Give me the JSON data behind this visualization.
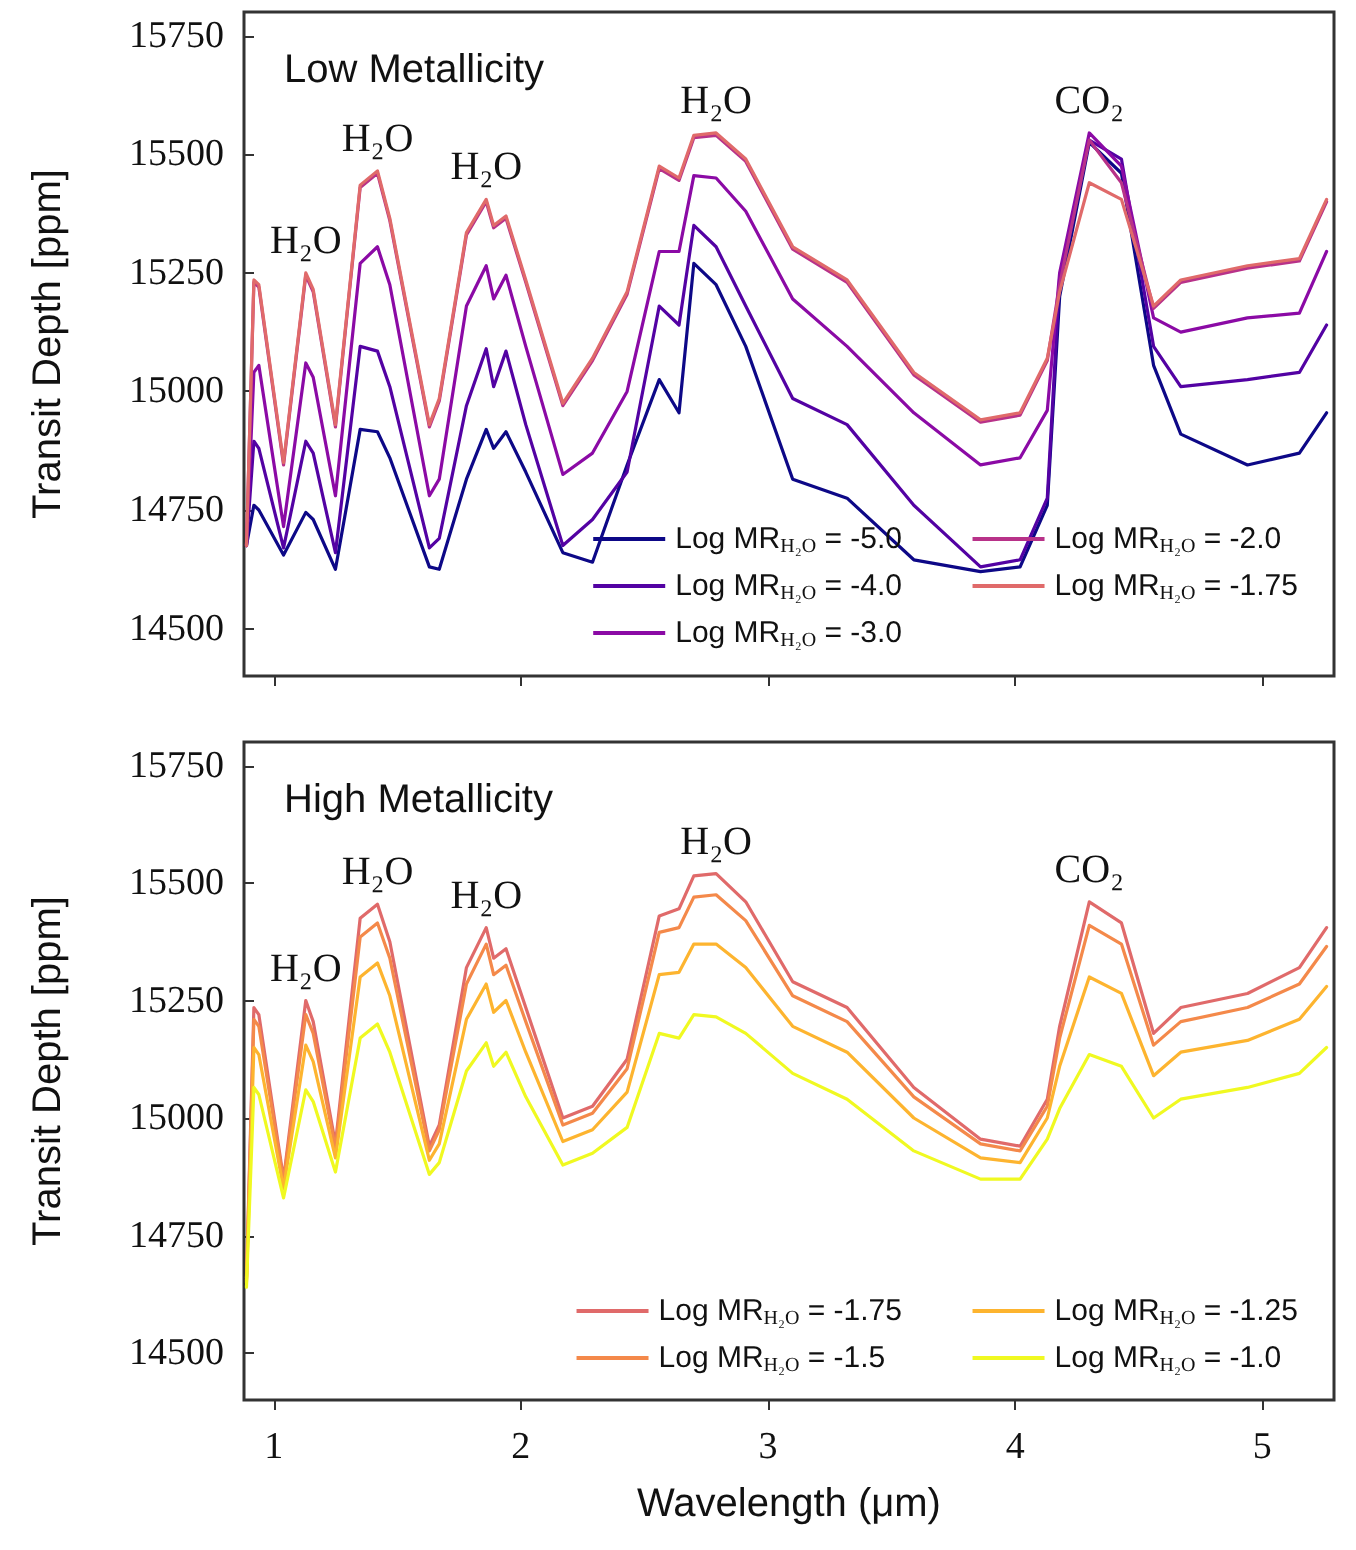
{
  "chart_data": [
    {
      "type": "line",
      "title": "Low Metallicity",
      "ylabel": "Transit Depth [ppm]",
      "xlim": [
        0.88,
        5.29
      ],
      "xticks": [
        1,
        2,
        3,
        4,
        5
      ],
      "ylim": [
        14400,
        15800
      ],
      "yticks": [
        14500,
        14750,
        15000,
        15250,
        15500,
        15750
      ],
      "tick_labels": "y",
      "grid": false,
      "legend": "bottom right",
      "marker": "none",
      "line_style": "solid",
      "x": [
        0.89,
        0.92,
        0.94,
        1.04,
        1.13,
        1.16,
        1.25,
        1.35,
        1.42,
        1.47,
        1.63,
        1.67,
        1.78,
        1.86,
        1.89,
        1.94,
        2.02,
        2.17,
        2.29,
        2.43,
        2.56,
        2.64,
        2.7,
        2.79,
        2.91,
        3.1,
        3.32,
        3.59,
        3.86,
        4.02,
        4.13,
        4.18,
        4.3,
        4.43,
        4.56,
        4.67,
        4.94,
        5.15,
        5.26
      ],
      "annotations": [
        {
          "text": "H₂O",
          "x": 1.13,
          "y": 15250
        },
        {
          "text": "H₂O",
          "x": 1.42,
          "y": 15465
        },
        {
          "text": "H₂O",
          "x": 1.86,
          "y": 15405
        },
        {
          "text": "H₂O",
          "x": 2.79,
          "y": 15545
        },
        {
          "text": "CO₂",
          "x": 4.3,
          "y": 15545
        }
      ],
      "series": [
        {
          "name": "Log MR$_{H₂O}$ = -5.0",
          "color": "#0d0887",
          "values": [
            14675,
            14760,
            14750,
            14655,
            14745,
            14730,
            14625,
            14920,
            14915,
            14860,
            14630,
            14625,
            14815,
            14920,
            14880,
            14915,
            14830,
            14660,
            14640,
            14845,
            15025,
            14955,
            15270,
            15225,
            15095,
            14815,
            14775,
            14645,
            14620,
            14630,
            14760,
            15200,
            15525,
            15460,
            15055,
            14910,
            14845,
            14870,
            14955
          ]
        },
        {
          "name": "Log MR$_{H₂O}$ = -4.0",
          "color": "#5302a3",
          "values": [
            14675,
            14895,
            14880,
            14670,
            14895,
            14870,
            14660,
            15095,
            15085,
            15010,
            14670,
            14690,
            14970,
            15090,
            15010,
            15085,
            14930,
            14675,
            14730,
            14830,
            15180,
            15140,
            15350,
            15305,
            15180,
            14985,
            14930,
            14760,
            14630,
            14645,
            14775,
            15240,
            15530,
            15490,
            15095,
            15010,
            15025,
            15040,
            15140
          ]
        },
        {
          "name": "Log MR$_{H₂O}$ = -3.0",
          "color": "#8b0aa5",
          "values": [
            14675,
            15040,
            15055,
            14715,
            15060,
            15030,
            14780,
            15270,
            15305,
            15225,
            14780,
            14815,
            15180,
            15265,
            15195,
            15245,
            15095,
            14825,
            14870,
            15000,
            15295,
            15295,
            15455,
            15450,
            15380,
            15195,
            15095,
            14955,
            14845,
            14860,
            14960,
            15250,
            15545,
            15475,
            15155,
            15125,
            15155,
            15165,
            15295
          ]
        },
        {
          "name": "Log MR$_{H₂O}$ = -2.0",
          "color": "#b83289",
          "values": [
            14675,
            15230,
            15220,
            14845,
            15245,
            15210,
            14925,
            15430,
            15460,
            15360,
            14925,
            14980,
            15330,
            15400,
            15345,
            15365,
            15230,
            14970,
            15065,
            15205,
            15470,
            15445,
            15535,
            15540,
            15485,
            15300,
            15230,
            15035,
            14935,
            14950,
            15065,
            15225,
            15530,
            15440,
            15175,
            15230,
            15260,
            15275,
            15400
          ]
        },
        {
          "name": "Log MR$_{H₂O}$ = -1.75",
          "color": "#e06a6a",
          "values": [
            14675,
            15235,
            15225,
            14850,
            15250,
            15215,
            14930,
            15435,
            15465,
            15365,
            14930,
            14985,
            15335,
            15405,
            15350,
            15370,
            15235,
            14975,
            15070,
            15210,
            15475,
            15450,
            15540,
            15545,
            15490,
            15305,
            15235,
            15040,
            14940,
            14955,
            15070,
            15210,
            15440,
            15405,
            15180,
            15235,
            15265,
            15280,
            15405
          ]
        }
      ]
    },
    {
      "type": "line",
      "title": "High Metallicity",
      "xlabel": "Wavelength (μm)",
      "ylabel": "Transit Depth [ppm]",
      "xlim": [
        0.88,
        5.29
      ],
      "xticks": [
        1,
        2,
        3,
        4,
        5
      ],
      "ylim": [
        14400,
        15800
      ],
      "yticks": [
        14500,
        14750,
        15000,
        15250,
        15500,
        15750
      ],
      "grid": false,
      "legend": "bottom right",
      "marker": "none",
      "line_style": "solid",
      "x": [
        0.89,
        0.92,
        0.94,
        1.04,
        1.13,
        1.16,
        1.25,
        1.35,
        1.42,
        1.47,
        1.63,
        1.67,
        1.78,
        1.86,
        1.89,
        1.94,
        2.02,
        2.17,
        2.29,
        2.43,
        2.56,
        2.64,
        2.7,
        2.79,
        2.91,
        3.1,
        3.32,
        3.59,
        3.86,
        4.02,
        4.13,
        4.18,
        4.3,
        4.43,
        4.56,
        4.67,
        4.94,
        5.15,
        5.26
      ],
      "annotations": [
        {
          "text": "H₂O",
          "x": 1.13,
          "y": 15250
        },
        {
          "text": "H₂O",
          "x": 1.42,
          "y": 15455
        },
        {
          "text": "H₂O",
          "x": 1.86,
          "y": 15405
        },
        {
          "text": "H₂O",
          "x": 2.79,
          "y": 15520
        },
        {
          "text": "CO₂",
          "x": 4.3,
          "y": 15460
        }
      ],
      "series": [
        {
          "name": "Log MR$_{H₂O}$ = -1.75",
          "color": "#e06a6a",
          "values": [
            14660,
            15235,
            15220,
            14870,
            15250,
            15205,
            14945,
            15425,
            15455,
            15375,
            14940,
            14985,
            15320,
            15405,
            15340,
            15360,
            15235,
            15000,
            15025,
            15125,
            15430,
            15445,
            15515,
            15520,
            15460,
            15290,
            15235,
            15065,
            14955,
            14940,
            15040,
            15195,
            15460,
            15415,
            15180,
            15235,
            15265,
            15320,
            15405
          ]
        },
        {
          "name": "Log MR$_{H₂O}$ = -1.5",
          "color": "#f4894a",
          "values": [
            14655,
            15210,
            15195,
            14865,
            15220,
            15180,
            14935,
            15385,
            15415,
            15340,
            14930,
            14975,
            15285,
            15370,
            15305,
            15325,
            15205,
            14985,
            15010,
            15105,
            15395,
            15405,
            15470,
            15475,
            15420,
            15260,
            15205,
            15045,
            14945,
            14930,
            15025,
            15170,
            15410,
            15370,
            15155,
            15205,
            15235,
            15285,
            15365
          ]
        },
        {
          "name": "Log MR$_{H₂O}$ = -1.25",
          "color": "#fdb42f",
          "values": [
            14650,
            15150,
            15135,
            14850,
            15155,
            15120,
            14915,
            15300,
            15330,
            15260,
            14910,
            14945,
            15210,
            15285,
            15225,
            15250,
            15140,
            14950,
            14975,
            15055,
            15305,
            15310,
            15370,
            15370,
            15320,
            15195,
            15140,
            15000,
            14915,
            14905,
            15000,
            15110,
            15300,
            15265,
            15090,
            15140,
            15165,
            15210,
            15280
          ]
        },
        {
          "name": "Log MR$_{H₂O}$ = -1.0",
          "color": "#f0f921",
          "values": [
            14640,
            15065,
            15050,
            14830,
            15060,
            15035,
            14885,
            15170,
            15200,
            15140,
            14880,
            14905,
            15100,
            15160,
            15110,
            15140,
            15045,
            14900,
            14925,
            14980,
            15180,
            15170,
            15220,
            15215,
            15180,
            15095,
            15040,
            14930,
            14870,
            14870,
            14955,
            15020,
            15135,
            15110,
            15000,
            15040,
            15065,
            15095,
            15150
          ]
        }
      ]
    }
  ]
}
